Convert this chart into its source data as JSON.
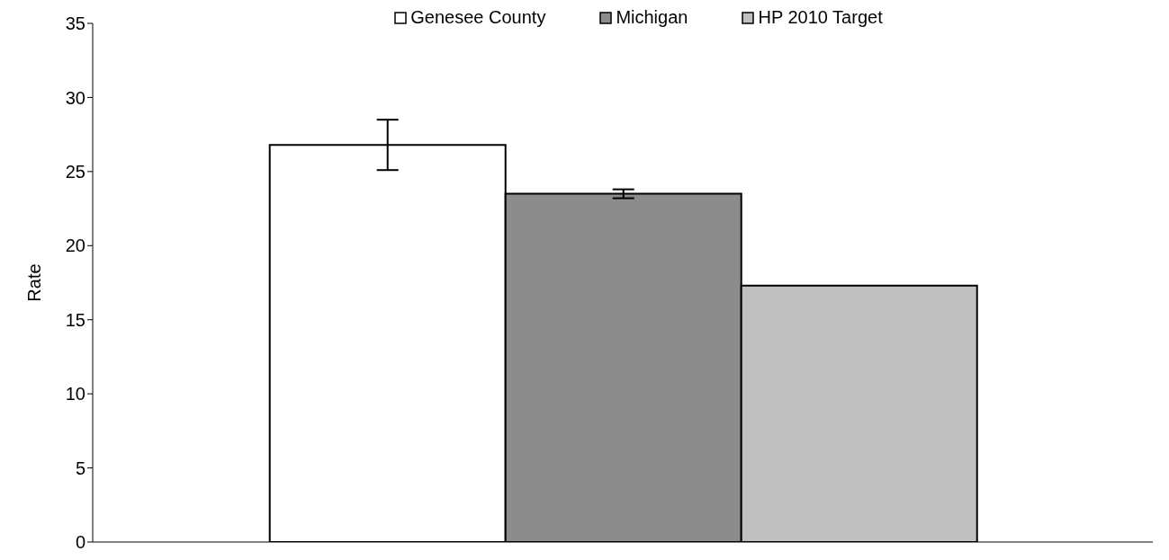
{
  "chart_data": {
    "type": "bar",
    "ylabel": "Rate",
    "categories": [
      null
    ],
    "series": [
      {
        "name": "Genesee County",
        "color": "#ffffff",
        "values": [
          26.8
        ],
        "errors": [
          [
            25.1,
            28.5
          ]
        ]
      },
      {
        "name": "Michigan",
        "color": "#8c8c8c",
        "values": [
          23.5
        ],
        "errors": [
          [
            23.2,
            23.8
          ]
        ]
      },
      {
        "name": "HP 2010 Target",
        "color": "#c0c0c0",
        "values": [
          17.3
        ]
      }
    ],
    "ylim": [
      0,
      35
    ],
    "yticks": [
      0,
      5,
      10,
      15,
      20,
      25,
      30,
      35
    ],
    "grid": false,
    "legend": "top",
    "tick_labels": "y"
  }
}
